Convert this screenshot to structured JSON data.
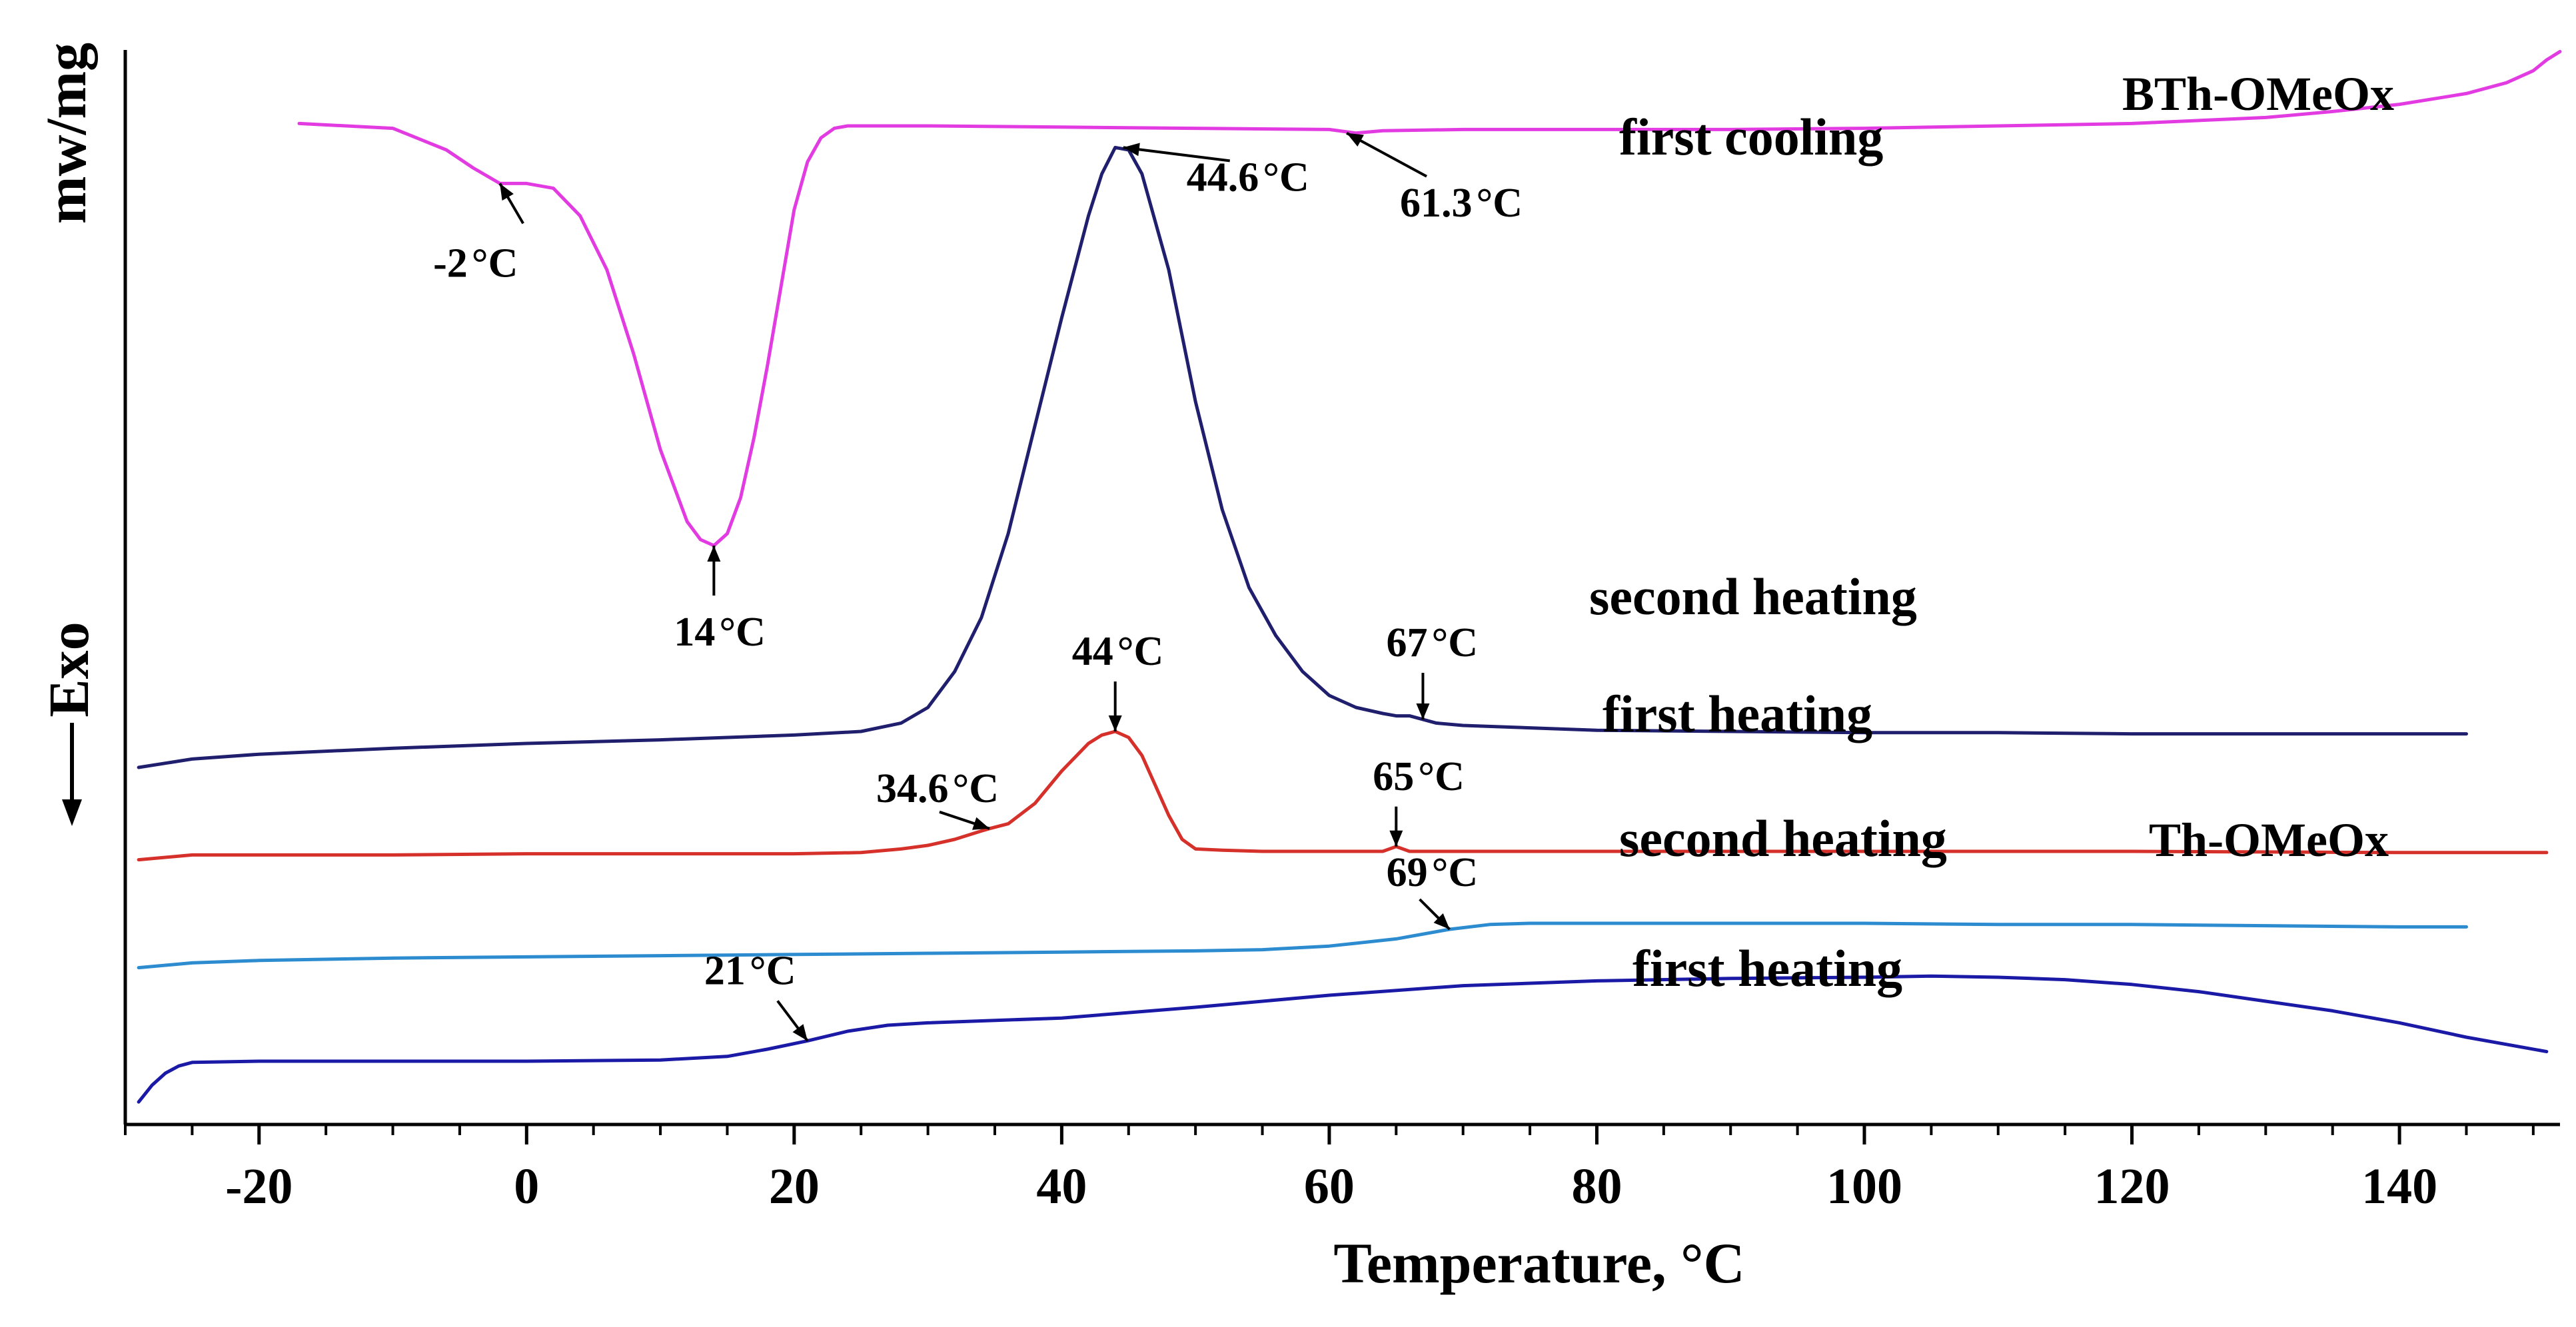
{
  "chart_data": {
    "type": "line",
    "title": "",
    "xlabel": "Temperature, °C",
    "ylabel": "mw/mg",
    "exo_label": "Exo",
    "xlim": [
      -30,
      152
    ],
    "x_ticks": [
      -20,
      0,
      20,
      40,
      60,
      80,
      100,
      120,
      140
    ],
    "tick_labels": [
      "-20",
      "0",
      "20",
      "40",
      "60",
      "80",
      "100",
      "120",
      "140"
    ],
    "samples": [
      {
        "name": "BTh-OMeOx"
      },
      {
        "name": "Th-OMeOx"
      }
    ],
    "series": [
      {
        "name": "first cooling",
        "sample": "BTh-OMeOx",
        "color": "#e23be2",
        "x": [
          -17,
          -10,
          -6,
          -4,
          -2,
          0,
          2,
          4,
          6,
          8,
          10,
          12,
          13,
          14,
          15,
          16,
          17,
          18,
          19,
          20,
          21,
          22,
          23,
          24,
          25,
          26,
          30,
          40,
          50,
          60,
          62,
          64,
          70,
          80,
          90,
          100,
          110,
          120,
          130,
          135,
          140,
          145,
          148,
          150,
          151,
          152
        ],
        "values": [
          8.22,
          8.18,
          8.0,
          7.85,
          7.72,
          7.72,
          7.68,
          7.45,
          7.0,
          6.3,
          5.5,
          4.9,
          4.75,
          4.7,
          4.8,
          5.1,
          5.6,
          6.2,
          6.85,
          7.5,
          7.9,
          8.1,
          8.18,
          8.2,
          8.2,
          8.2,
          8.2,
          8.19,
          8.18,
          8.17,
          8.14,
          8.16,
          8.17,
          8.17,
          8.17,
          8.18,
          8.2,
          8.22,
          8.27,
          8.32,
          8.38,
          8.47,
          8.56,
          8.66,
          8.75,
          8.82
        ]
      },
      {
        "name": "second heating",
        "sample": "BTh-OMeOx",
        "color": "#1f1f6e",
        "x": [
          -29,
          -25,
          -20,
          -10,
          0,
          10,
          20,
          25,
          28,
          30,
          32,
          34,
          36,
          38,
          40,
          42,
          43,
          44,
          45,
          46,
          48,
          50,
          52,
          54,
          56,
          58,
          60,
          62,
          64,
          65,
          66,
          68,
          70,
          75,
          80,
          90,
          100,
          110,
          120,
          130,
          140,
          145
        ],
        "values": [
          2.85,
          2.92,
          2.96,
          3.01,
          3.05,
          3.08,
          3.12,
          3.15,
          3.22,
          3.35,
          3.65,
          4.1,
          4.8,
          5.7,
          6.6,
          7.45,
          7.8,
          8.02,
          8.0,
          7.8,
          7.0,
          5.9,
          5.0,
          4.35,
          3.95,
          3.65,
          3.45,
          3.35,
          3.3,
          3.28,
          3.28,
          3.22,
          3.2,
          3.18,
          3.16,
          3.15,
          3.14,
          3.14,
          3.13,
          3.13,
          3.13,
          3.13
        ]
      },
      {
        "name": "first heating",
        "sample": "BTh-OMeOx",
        "color": "#d6302a",
        "x": [
          -29,
          -25,
          -20,
          -10,
          0,
          10,
          20,
          25,
          28,
          30,
          32,
          34,
          34.6,
          36,
          38,
          40,
          42,
          43,
          44,
          45,
          46,
          47,
          48,
          49,
          50,
          52,
          55,
          60,
          64,
          65,
          66,
          70,
          80,
          100,
          120,
          140,
          151
        ],
        "values": [
          2.08,
          2.12,
          2.12,
          2.12,
          2.13,
          2.13,
          2.13,
          2.14,
          2.17,
          2.2,
          2.25,
          2.32,
          2.34,
          2.38,
          2.55,
          2.82,
          3.05,
          3.12,
          3.15,
          3.1,
          2.95,
          2.7,
          2.45,
          2.25,
          2.17,
          2.16,
          2.15,
          2.15,
          2.15,
          2.19,
          2.15,
          2.15,
          2.15,
          2.15,
          2.15,
          2.14,
          2.14
        ]
      },
      {
        "name": "second heating",
        "sample": "Th-OMeOx",
        "color": "#2d8ccf",
        "x": [
          -29,
          -25,
          -20,
          -10,
          0,
          10,
          20,
          30,
          40,
          50,
          55,
          60,
          65,
          69,
          72,
          75,
          80,
          90,
          100,
          110,
          120,
          130,
          140,
          145
        ],
        "values": [
          1.18,
          1.22,
          1.24,
          1.26,
          1.27,
          1.28,
          1.29,
          1.3,
          1.31,
          1.32,
          1.33,
          1.36,
          1.42,
          1.5,
          1.54,
          1.55,
          1.55,
          1.55,
          1.55,
          1.54,
          1.54,
          1.53,
          1.52,
          1.52
        ]
      },
      {
        "name": "first heating",
        "sample": "Th-OMeOx",
        "color": "#1a1aa6",
        "x": [
          -29,
          -28,
          -27,
          -26,
          -25,
          -20,
          -10,
          0,
          10,
          15,
          18,
          21,
          24,
          27,
          30,
          40,
          50,
          60,
          70,
          80,
          90,
          100,
          105,
          110,
          115,
          120,
          125,
          130,
          135,
          140,
          145,
          151
        ],
        "values": [
          0.06,
          0.2,
          0.3,
          0.36,
          0.39,
          0.4,
          0.4,
          0.4,
          0.41,
          0.44,
          0.5,
          0.57,
          0.65,
          0.7,
          0.72,
          0.76,
          0.85,
          0.95,
          1.03,
          1.07,
          1.09,
          1.1,
          1.11,
          1.1,
          1.08,
          1.04,
          0.98,
          0.9,
          0.82,
          0.72,
          0.6,
          0.48
        ]
      }
    ],
    "annotations": [
      {
        "label": "-2",
        "unit": "°C",
        "x": -2,
        "y": 7.72,
        "series": 0
      },
      {
        "label": "14",
        "unit": "°C",
        "x": 14,
        "y": 4.7,
        "series": 0
      },
      {
        "label": "44.6",
        "unit": "°C",
        "x": 44.6,
        "y": 8.02,
        "series": 1
      },
      {
        "label": "61.3",
        "unit": "°C",
        "x": 61.3,
        "y": 8.14,
        "series": 0
      },
      {
        "label": "67",
        "unit": "°C",
        "x": 67,
        "y": 3.25,
        "series": 1
      },
      {
        "label": "44",
        "unit": "°C",
        "x": 44,
        "y": 3.15,
        "series": 2
      },
      {
        "label": "34.6",
        "unit": "°C",
        "x": 34.6,
        "y": 2.34,
        "series": 2
      },
      {
        "label": "65",
        "unit": "°C",
        "x": 65,
        "y": 2.19,
        "series": 2
      },
      {
        "label": "69",
        "unit": "°C",
        "x": 69,
        "y": 1.5,
        "series": 3
      },
      {
        "label": "21",
        "unit": "°C",
        "x": 21,
        "y": 0.57,
        "series": 4
      }
    ]
  }
}
